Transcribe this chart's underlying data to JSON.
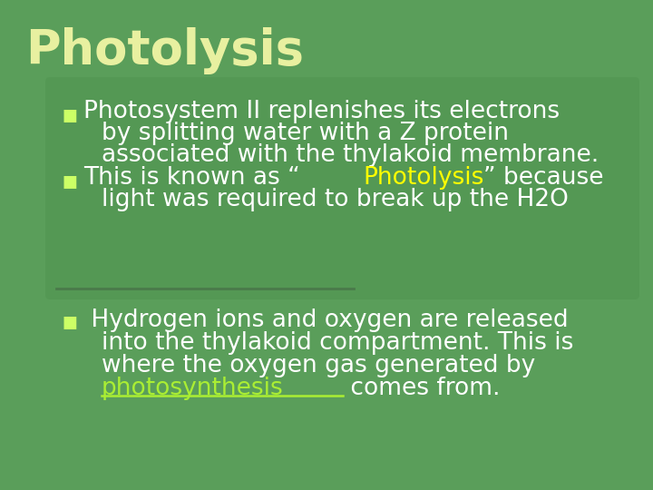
{
  "bg_color": "#5a9e5a",
  "title": "Photolysis",
  "title_color": "#e8f0a0",
  "title_fontsize": 38,
  "bullet_color": "#ffffff",
  "bullet_fontsize": 19,
  "highlight_yellow": "#ffff00",
  "highlight_green": "#aaee33",
  "bullet_marker_color": "#ccff66",
  "bullet1_lines": [
    "Photosystem II replenishes its electrons",
    "by splitting water with a Z protein",
    "associated with the thylakoid membrane."
  ],
  "bullet2_part1": "This is known as “",
  "bullet2_highlight": "Photolysis",
  "bullet2_part2": "” because",
  "bullet2_line2": "light was required to break up the H2O",
  "bullet3_line1": " Hydrogen ions and oxygen are released",
  "bullet3_line2": "into the thylakoid compartment. This is",
  "bullet3_line3": "where the oxygen gas generated by",
  "bullet3_highlight": "photosynthesis",
  "bullet3_after": " comes from.",
  "panel_color": "#4d8f4d",
  "panel_alpha": 0.4,
  "divider_color": "#4a7a4a"
}
